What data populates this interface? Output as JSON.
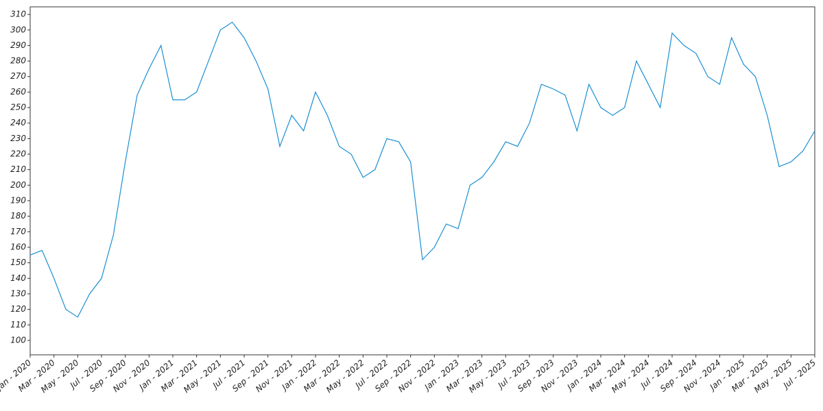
{
  "chart_data": {
    "type": "line",
    "x": [
      "2020-01",
      "2020-02",
      "2020-03",
      "2020-04",
      "2020-05",
      "2020-06",
      "2020-07",
      "2020-08",
      "2020-09",
      "2020-10",
      "2020-11",
      "2020-12",
      "2021-01",
      "2021-02",
      "2021-03",
      "2021-04",
      "2021-05",
      "2021-06",
      "2021-07",
      "2021-08",
      "2021-09",
      "2021-10",
      "2021-11",
      "2021-12",
      "2022-01",
      "2022-02",
      "2022-03",
      "2022-04",
      "2022-05",
      "2022-06",
      "2022-07",
      "2022-08",
      "2022-09",
      "2022-10",
      "2022-11",
      "2022-12",
      "2023-01",
      "2023-02",
      "2023-03",
      "2023-04",
      "2023-05",
      "2023-06",
      "2023-07",
      "2023-08",
      "2023-09",
      "2023-10",
      "2023-11",
      "2023-12",
      "2024-01",
      "2024-02",
      "2024-03",
      "2024-04",
      "2024-05",
      "2024-06",
      "2024-07",
      "2024-08",
      "2024-09",
      "2024-10",
      "2024-11",
      "2024-12",
      "2025-01",
      "2025-02",
      "2025-03",
      "2025-04",
      "2025-05",
      "2025-06",
      "2025-07"
    ],
    "series": [
      {
        "color": "#1a8fd2",
        "values": [
          155,
          158,
          140,
          120,
          115,
          130,
          140,
          168,
          215,
          258,
          275,
          290,
          255,
          255,
          260,
          280,
          300,
          305,
          295,
          280,
          262,
          225,
          245,
          235,
          260,
          245,
          225,
          220,
          205,
          210,
          230,
          228,
          215,
          152,
          160,
          175,
          172,
          200,
          205,
          215,
          228,
          225,
          240,
          265,
          262,
          258,
          235,
          265,
          250,
          245,
          250,
          280,
          265,
          250,
          298,
          290,
          285,
          270,
          265,
          295,
          278,
          270,
          245,
          212,
          215,
          222,
          235
        ]
      }
    ],
    "xlim": [
      "2020-01",
      "2025-07"
    ],
    "xticks": [
      {
        "value": "2020-01",
        "label": "Jan - 2020"
      },
      {
        "value": "2020-03",
        "label": "Mar - 2020"
      },
      {
        "value": "2020-05",
        "label": "May - 2020"
      },
      {
        "value": "2020-07",
        "label": "Jul - 2020"
      },
      {
        "value": "2020-09",
        "label": "Sep - 2020"
      },
      {
        "value": "2020-11",
        "label": "Nov - 2020"
      },
      {
        "value": "2021-01",
        "label": "Jan - 2021"
      },
      {
        "value": "2021-03",
        "label": "Mar - 2021"
      },
      {
        "value": "2021-05",
        "label": "May - 2021"
      },
      {
        "value": "2021-07",
        "label": "Jul - 2021"
      },
      {
        "value": "2021-09",
        "label": "Sep - 2021"
      },
      {
        "value": "2021-11",
        "label": "Nov - 2021"
      },
      {
        "value": "2022-01",
        "label": "Jan - 2022"
      },
      {
        "value": "2022-03",
        "label": "Mar - 2022"
      },
      {
        "value": "2022-05",
        "label": "May - 2022"
      },
      {
        "value": "2022-07",
        "label": "Jul - 2022"
      },
      {
        "value": "2022-09",
        "label": "Sep - 2022"
      },
      {
        "value": "2022-11",
        "label": "Nov - 2022"
      },
      {
        "value": "2023-01",
        "label": "Jan - 2023"
      },
      {
        "value": "2023-03",
        "label": "Mar - 2023"
      },
      {
        "value": "2023-05",
        "label": "May - 2023"
      },
      {
        "value": "2023-07",
        "label": "Jul - 2023"
      },
      {
        "value": "2023-09",
        "label": "Sep - 2023"
      },
      {
        "value": "2023-11",
        "label": "Nov - 2023"
      },
      {
        "value": "2024-01",
        "label": "Jan - 2024"
      },
      {
        "value": "2024-03",
        "label": "Mar - 2024"
      },
      {
        "value": "2024-05",
        "label": "May - 2024"
      },
      {
        "value": "2024-07",
        "label": "Jul - 2024"
      },
      {
        "value": "2024-09",
        "label": "Sep - 2024"
      },
      {
        "value": "2024-11",
        "label": "Nov - 2024"
      },
      {
        "value": "2025-01",
        "label": "Jan - 2025"
      },
      {
        "value": "2025-03",
        "label": "Mar - 2025"
      },
      {
        "value": "2025-05",
        "label": "May - 2025"
      },
      {
        "value": "2025-07",
        "label": "Jul - 2025"
      }
    ],
    "ylim": [
      90.7,
      314.9
    ],
    "yticks": [
      100,
      110,
      120,
      130,
      140,
      150,
      160,
      170,
      180,
      190,
      200,
      210,
      220,
      230,
      240,
      250,
      260,
      270,
      280,
      290,
      300,
      310
    ]
  }
}
